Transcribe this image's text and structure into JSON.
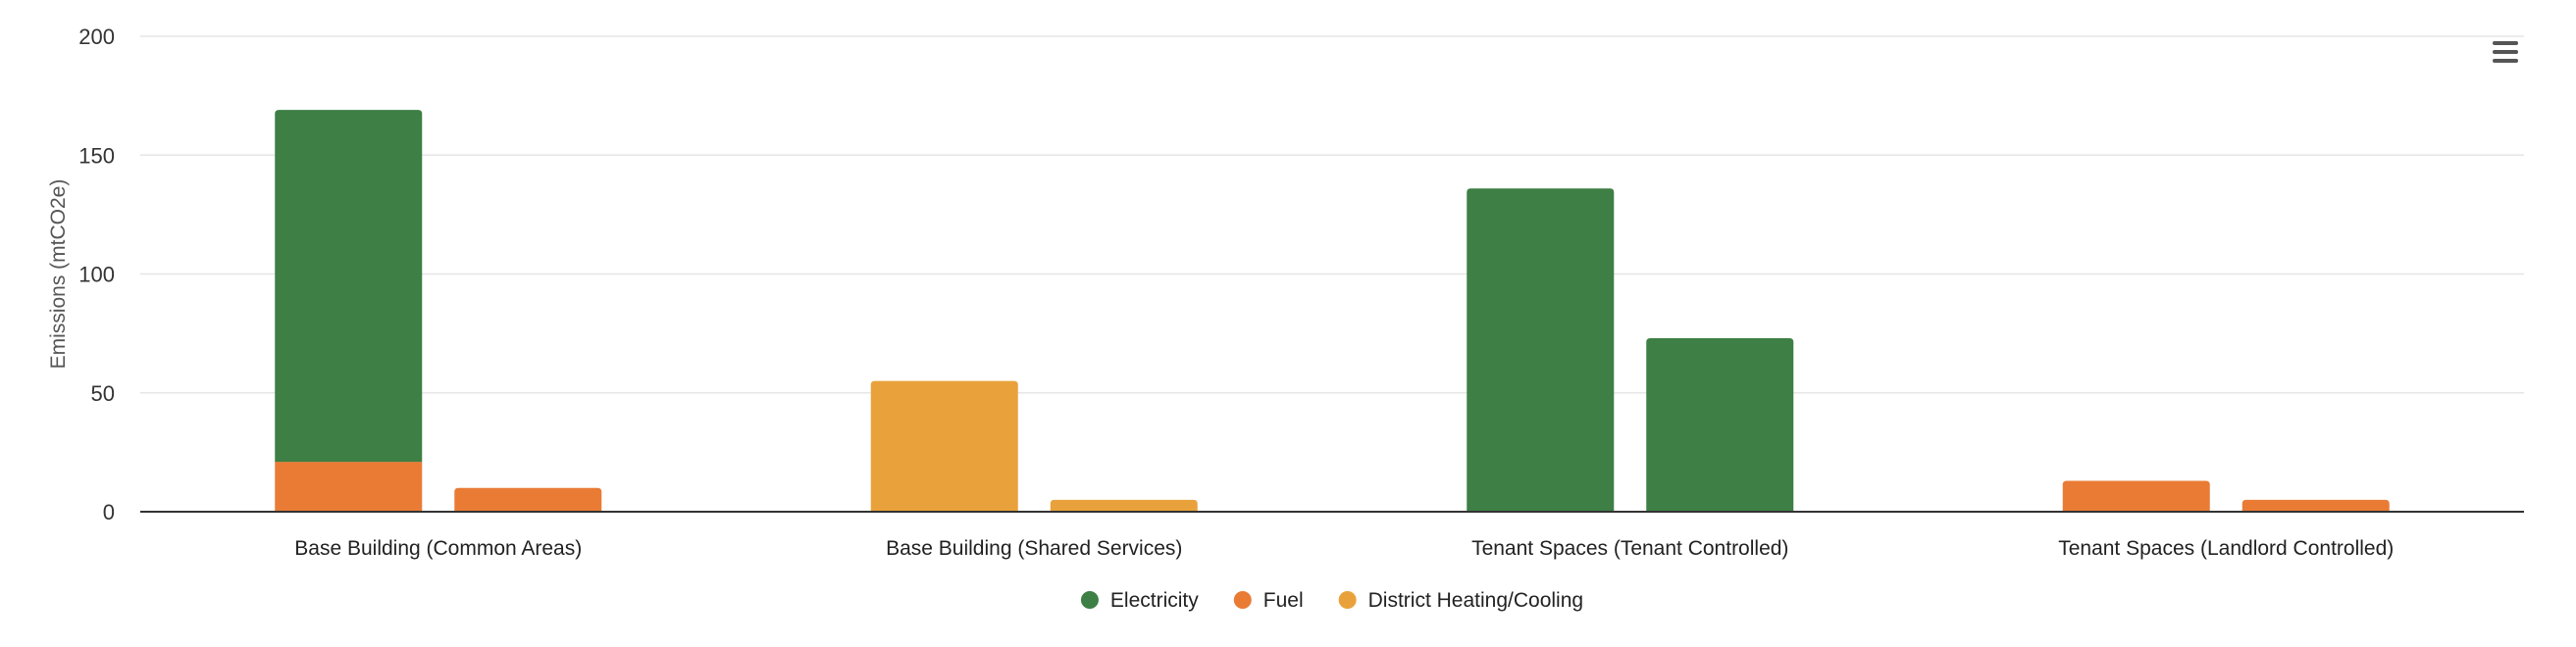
{
  "chart_data": {
    "type": "bar",
    "stacked": true,
    "categories": [
      "Base Building (Common Areas)",
      "Base Building (Shared Services)",
      "Tenant Spaces (Tenant Controlled)",
      "Tenant Spaces (Landlord Controlled)"
    ],
    "bars_per_category": 2,
    "series": [
      {
        "name": "Electricity",
        "color": "#3d7f44",
        "values": [
          [
            148,
            0
          ],
          [
            0,
            0
          ],
          [
            136,
            73
          ],
          [
            0,
            0
          ]
        ]
      },
      {
        "name": "Fuel",
        "color": "#e97b35",
        "values": [
          [
            21,
            10
          ],
          [
            0,
            0
          ],
          [
            0,
            0
          ],
          [
            13,
            5
          ]
        ]
      },
      {
        "name": "District Heating/Cooling",
        "color": "#e9a23b",
        "values": [
          [
            0,
            0
          ],
          [
            55,
            5
          ],
          [
            0,
            0
          ],
          [
            0,
            0
          ]
        ]
      }
    ],
    "stack_order": [
      "Fuel",
      "Electricity",
      "District Heating/Cooling"
    ],
    "ylabel": "Emissions (mtCO2e)",
    "xlabel": "",
    "ylim": [
      0,
      200
    ],
    "yticks": [
      0,
      50,
      100,
      150,
      200
    ],
    "grid": true,
    "legend_position": "bottom-center"
  },
  "menu": {
    "icon": "hamburger-menu-icon"
  }
}
